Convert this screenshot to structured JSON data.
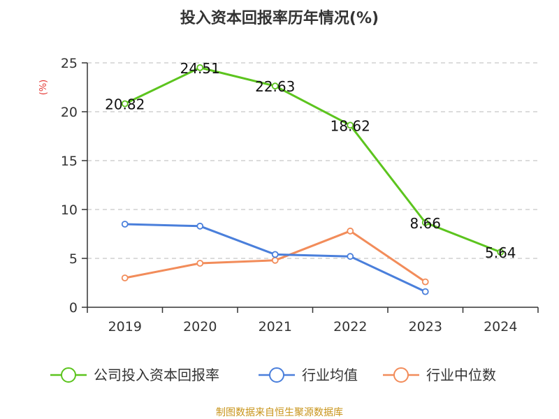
{
  "chart_data": {
    "type": "line",
    "title": "投入资本回报率历年情况(%)",
    "ylabel": "(%)",
    "xlabel": "",
    "categories": [
      "2019",
      "2020",
      "2021",
      "2022",
      "2023",
      "2024"
    ],
    "ylim": [
      0,
      25
    ],
    "yticks": [
      0,
      5,
      10,
      15,
      20,
      25
    ],
    "grid": true,
    "legend_position": "bottom",
    "series": [
      {
        "name": "公司投入资本回报率",
        "color": "#5cc41e",
        "values": [
          20.82,
          24.51,
          22.63,
          18.62,
          8.66,
          5.64
        ],
        "labels": [
          "20.82",
          "24.51",
          "22.63",
          "18.62",
          "8.66",
          "5.64"
        ]
      },
      {
        "name": "行业均值",
        "color": "#4a7fdb",
        "values": [
          8.5,
          8.3,
          5.4,
          5.2,
          1.6,
          null
        ]
      },
      {
        "name": "行业中位数",
        "color": "#f28c5a",
        "values": [
          3.0,
          4.5,
          4.8,
          7.8,
          2.6,
          null
        ]
      }
    ],
    "source": "制图数据来自恒生聚源数据库"
  }
}
